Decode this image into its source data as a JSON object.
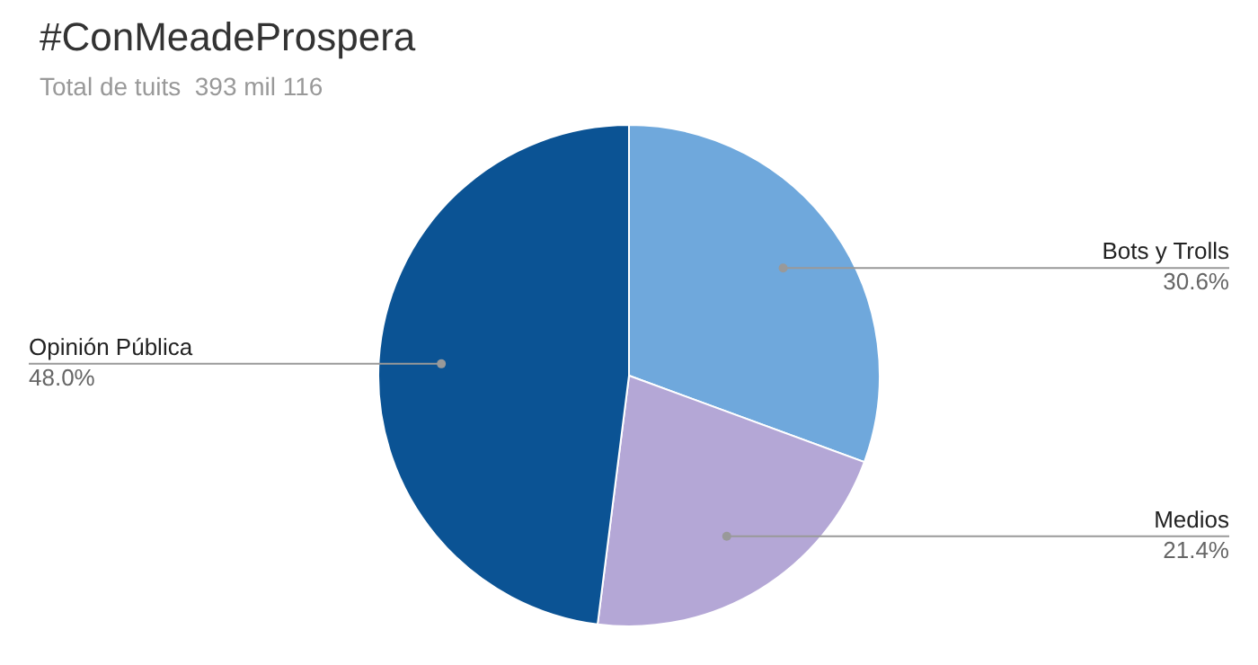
{
  "chart_data": {
    "type": "pie",
    "title": "#ConMeadeProspera",
    "subtitle": "Total de tuits  393 mil 116",
    "categories": [
      "Bots y Trolls",
      "Medios",
      "Opinión Pública"
    ],
    "values": [
      30.6,
      21.4,
      48.0
    ],
    "colors": [
      "#6fa8dc",
      "#b4a7d6",
      "#0b5394"
    ],
    "value_labels": [
      "30.6%",
      "21.4%",
      "48.0%"
    ],
    "legend": false
  }
}
